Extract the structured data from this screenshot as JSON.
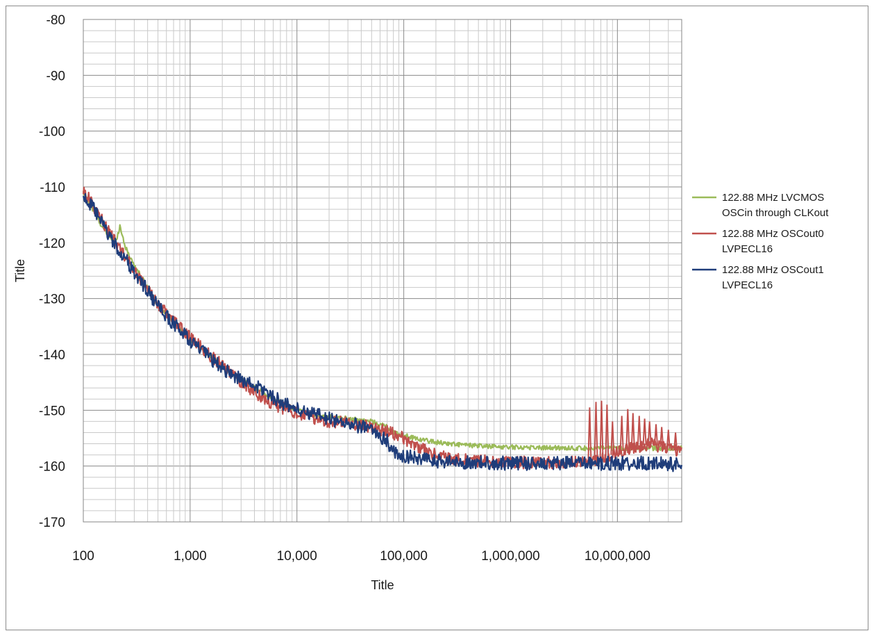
{
  "chart_data": {
    "type": "line",
    "title": "",
    "xlabel": "Title",
    "ylabel": "Title",
    "x_scale": "log",
    "xlim": [
      100,
      40000000
    ],
    "ylim": [
      -170,
      -80
    ],
    "grid": true,
    "legend_position": "right",
    "x_ticks": [
      {
        "value": 100,
        "label": "100"
      },
      {
        "value": 1000,
        "label": "1,000"
      },
      {
        "value": 10000,
        "label": "10,000"
      },
      {
        "value": 100000,
        "label": "100,000"
      },
      {
        "value": 1000000,
        "label": "1,000,000"
      },
      {
        "value": 10000000,
        "label": "10,000,000"
      }
    ],
    "y_ticks": [
      -80,
      -90,
      -100,
      -110,
      -120,
      -130,
      -140,
      -150,
      -160,
      -170
    ],
    "series": [
      {
        "name": "122.88 MHz LVCMOS OSCin through CLKout",
        "legend_lines": [
          "122.88 MHz LVCMOS",
          "OSCin through CLKout"
        ],
        "color": "#9bbb59",
        "x": [
          100,
          130,
          160,
          200,
          220,
          250,
          300,
          400,
          500,
          700,
          1000,
          1500,
          2000,
          3000,
          5000,
          7000,
          10000,
          15000,
          20000,
          30000,
          50000,
          70000,
          80000,
          100000,
          150000,
          200000,
          300000,
          500000,
          1000000,
          2000000,
          5000000,
          10000000,
          20000000,
          40000000
        ],
        "y": [
          -111,
          -115,
          -118,
          -120,
          -117,
          -121,
          -124,
          -128,
          -131,
          -134,
          -137.5,
          -140,
          -142,
          -144.5,
          -147,
          -148.5,
          -150,
          -151,
          -151.2,
          -151.5,
          -152,
          -153,
          -154,
          -154.5,
          -155.3,
          -155.7,
          -156.1,
          -156.4,
          -156.6,
          -156.7,
          -156.8,
          -156.8,
          -156.8,
          -156.8
        ],
        "noise": 0.3,
        "spurs": []
      },
      {
        "name": "122.88 MHz OSCout0 LVPECL16",
        "legend_lines": [
          "122.88 MHz OSCout0",
          "LVPECL16"
        ],
        "color": "#c0504d",
        "x": [
          100,
          130,
          160,
          200,
          250,
          300,
          400,
          500,
          700,
          1000,
          1500,
          2000,
          3000,
          5000,
          7000,
          10000,
          15000,
          20000,
          30000,
          50000,
          70000,
          100000,
          150000,
          200000,
          300000,
          500000,
          1000000,
          2000000,
          5000000,
          8000000,
          10000000,
          20000000,
          40000000
        ],
        "y": [
          -110.5,
          -114,
          -117,
          -120,
          -122.5,
          -125,
          -128,
          -131,
          -134,
          -137,
          -140,
          -142,
          -145,
          -148,
          -149.5,
          -150.5,
          -151.5,
          -152,
          -152.3,
          -153,
          -153.8,
          -155,
          -157,
          -158,
          -158.7,
          -159.1,
          -159.3,
          -159.4,
          -159.3,
          -158.5,
          -157.5,
          -156,
          -157.5
        ],
        "noise": 0.8,
        "spurs": [
          {
            "x": 5500000,
            "y": -149.5
          },
          {
            "x": 6300000,
            "y": -148.5
          },
          {
            "x": 7100000,
            "y": -148.3
          },
          {
            "x": 8000000,
            "y": -149
          },
          {
            "x": 9000000,
            "y": -152
          },
          {
            "x": 11000000,
            "y": -151
          },
          {
            "x": 12500000,
            "y": -149.8
          },
          {
            "x": 14000000,
            "y": -150.5
          },
          {
            "x": 16000000,
            "y": -151
          },
          {
            "x": 18000000,
            "y": -151.5
          },
          {
            "x": 20000000,
            "y": -152
          },
          {
            "x": 23000000,
            "y": -152.5
          },
          {
            "x": 26000000,
            "y": -153
          },
          {
            "x": 30000000,
            "y": -153.5
          },
          {
            "x": 35000000,
            "y": -154
          }
        ]
      },
      {
        "name": "122.88 MHz OSCout1 LVPECL16",
        "legend_lines": [
          "122.88 MHz OSCout1",
          "LVPECL16"
        ],
        "color": "#1f3d7a",
        "x": [
          100,
          130,
          160,
          200,
          250,
          300,
          400,
          500,
          700,
          1000,
          1500,
          2000,
          3000,
          5000,
          7000,
          10000,
          15000,
          20000,
          30000,
          50000,
          70000,
          80000,
          100000,
          150000,
          200000,
          300000,
          500000,
          1000000,
          2000000,
          5000000,
          10000000,
          20000000,
          40000000
        ],
        "y": [
          -111.5,
          -114.5,
          -117.5,
          -120.5,
          -123,
          -125.5,
          -128.5,
          -131.5,
          -134.5,
          -137.5,
          -140.5,
          -142.5,
          -144.5,
          -146.5,
          -148.5,
          -149.8,
          -150.8,
          -151.5,
          -152.3,
          -153.5,
          -155.5,
          -157.5,
          -158.2,
          -158.8,
          -159.1,
          -159.3,
          -159.4,
          -159.5,
          -159.5,
          -159.5,
          -159.5,
          -159.5,
          -159.8
        ],
        "noise": 0.9,
        "spurs": []
      }
    ]
  }
}
